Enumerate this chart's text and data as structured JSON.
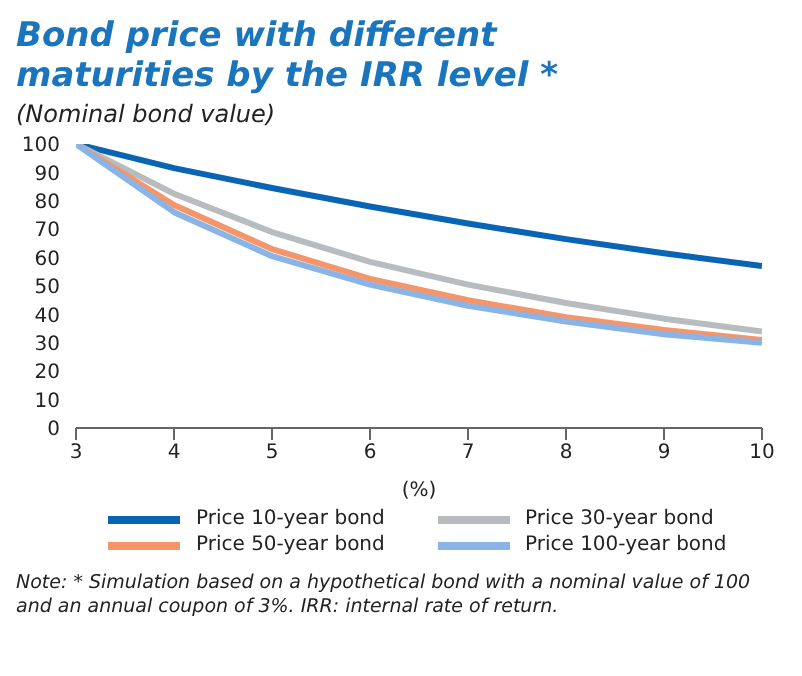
{
  "chart_data": {
    "type": "line",
    "title": "Bond price with different maturities by the IRR level *",
    "subtitle": "(Nominal bond value)",
    "xlabel": "(%)",
    "x": [
      3,
      4,
      5,
      6,
      7,
      8,
      9,
      10
    ],
    "series": [
      {
        "name": "Price 10-year bond",
        "color": "#0a64b4",
        "values": [
          100,
          91.5,
          84.5,
          78,
          72,
          66.5,
          61.5,
          57
        ]
      },
      {
        "name": "Price 30-year bond",
        "color": "#b8bcbe",
        "values": [
          100,
          82.5,
          69,
          58.5,
          50.5,
          44,
          38.5,
          34
        ]
      },
      {
        "name": "Price 50-year bond",
        "color": "#f4956a",
        "values": [
          100,
          78.5,
          63,
          52.5,
          45,
          39,
          34.5,
          31
        ]
      },
      {
        "name": "Price 100-year bond",
        "color": "#8ab4e6",
        "values": [
          100,
          76,
          60.5,
          50.5,
          43,
          37.5,
          33,
          30
        ]
      }
    ],
    "xlim": [
      3,
      10
    ],
    "xticks": [
      3,
      4,
      5,
      6,
      7,
      8,
      9,
      10
    ],
    "ylim": [
      0,
      100
    ],
    "yticks": [
      0,
      10,
      20,
      30,
      40,
      50,
      60,
      70,
      80,
      90,
      100
    ],
    "legend": "bottom",
    "marker": "none",
    "line_style": "solid",
    "annotations": [
      "Note: * Simulation based on a hypothetical bond with a nominal value of 100 and an annual coupon of 3%. IRR: internal rate of return."
    ]
  }
}
